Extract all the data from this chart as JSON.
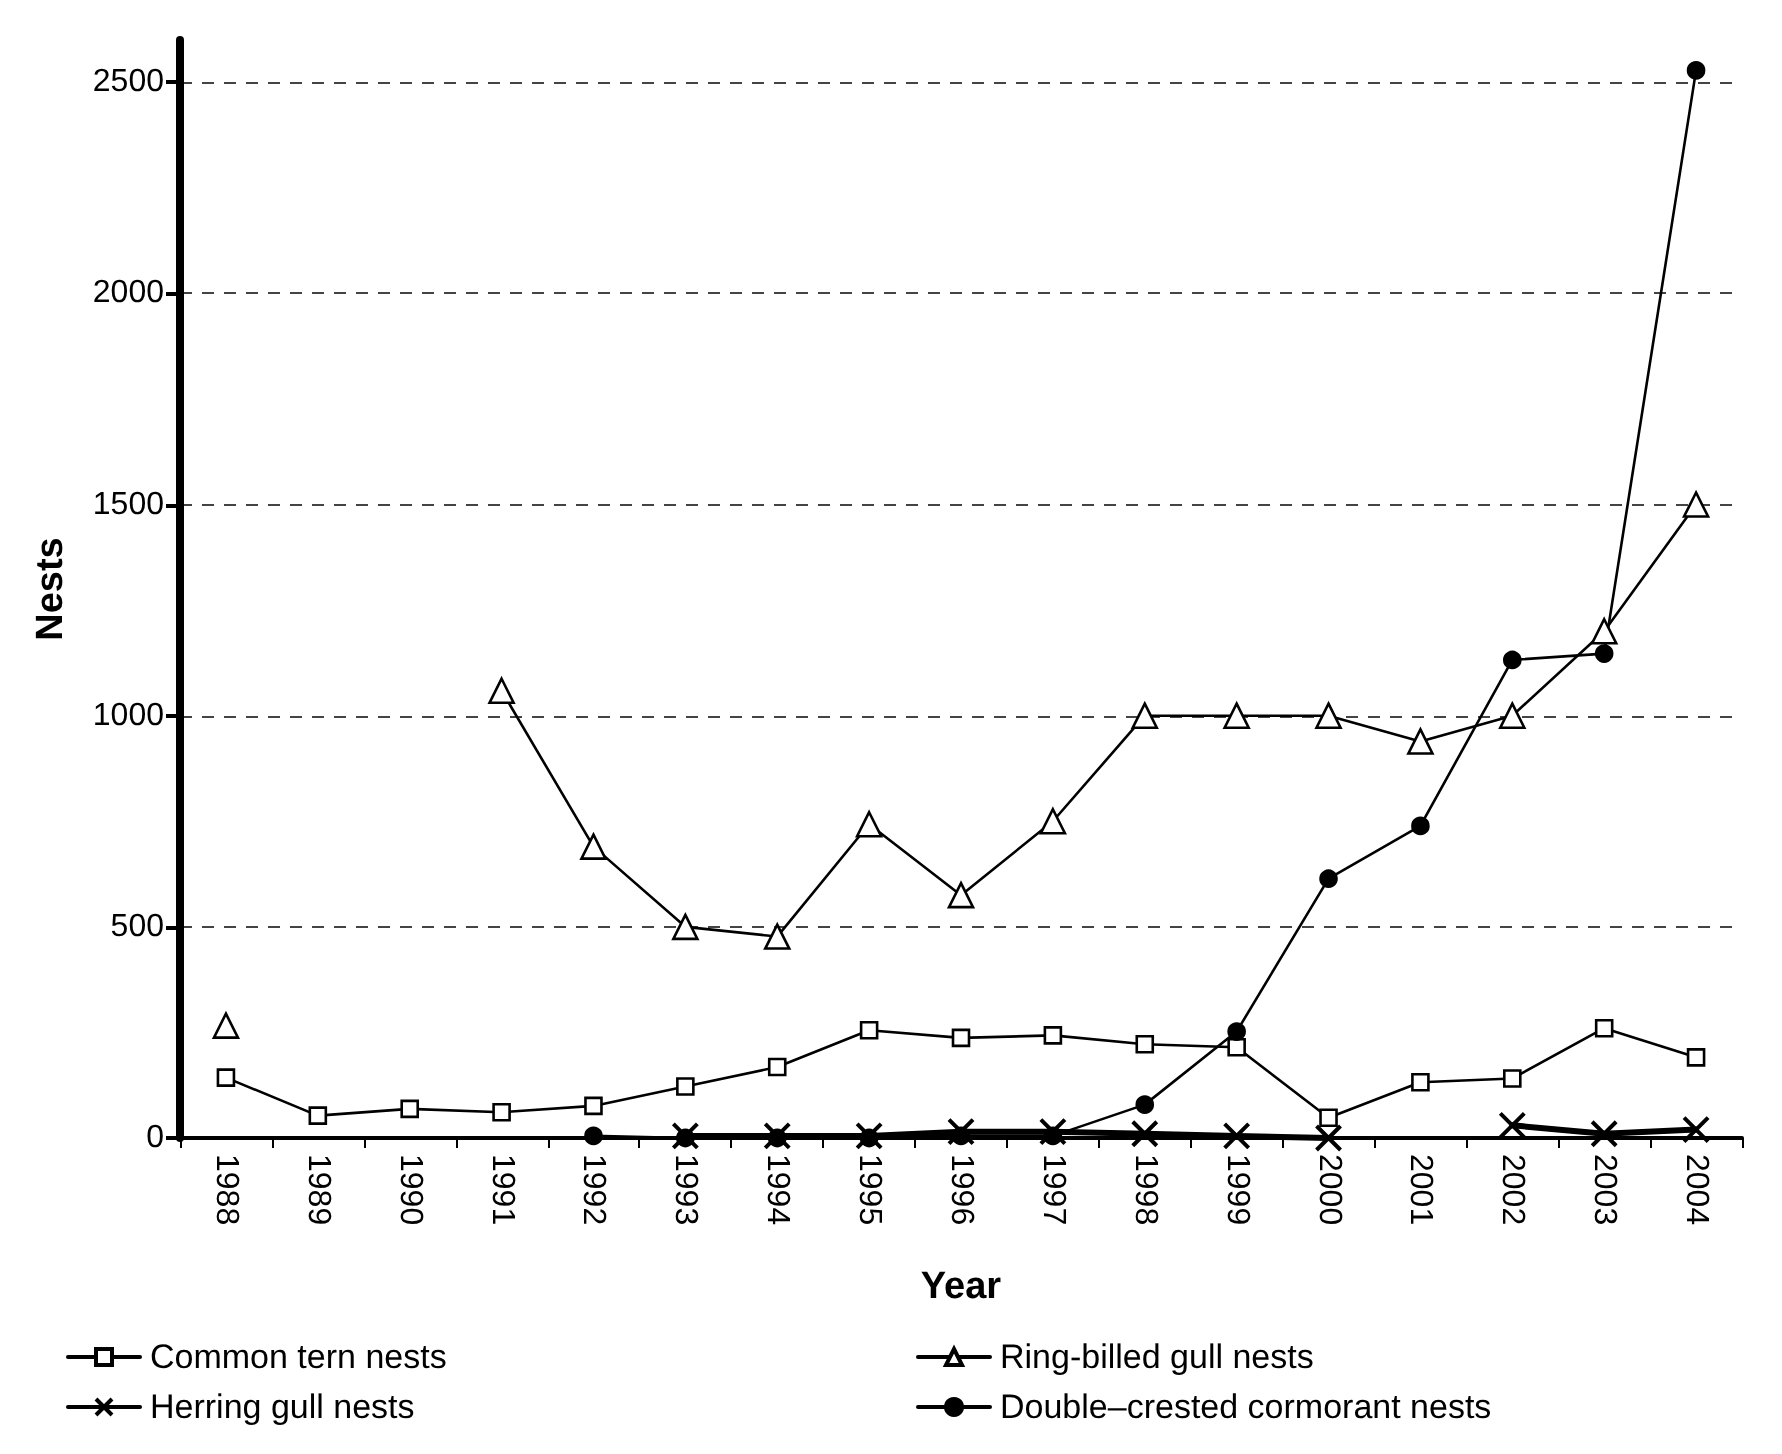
{
  "chart_data": {
    "type": "line",
    "xlabel": "Year",
    "ylabel": "Nests",
    "categories": [
      "1988",
      "1989",
      "1990",
      "1991",
      "1992",
      "1993",
      "1994",
      "1995",
      "1996",
      "1997",
      "1998",
      "1999",
      "2000",
      "2001",
      "2002",
      "2003",
      "2004"
    ],
    "ylim": [
      0,
      2600
    ],
    "yticks": [
      0,
      500,
      1000,
      1500,
      2000,
      2500
    ],
    "grid": "y",
    "legend": "bottom",
    "series": [
      {
        "name": "Common tern nests",
        "color": "#000000",
        "marker": "square",
        "values": [
          143,
          53,
          69,
          61,
          76,
          122,
          168,
          255,
          237,
          243,
          222,
          215,
          48,
          132,
          141,
          260,
          191
        ]
      },
      {
        "name": "Ring-billed gull nests",
        "color": "#000000",
        "marker": "triangle",
        "values": [
          266,
          null,
          null,
          1059,
          690,
          500,
          477,
          743,
          575,
          750,
          1000,
          1000,
          1000,
          939,
          1000,
          1200,
          1500
        ]
      },
      {
        "name": "Herring gull nests",
        "color": "#000000",
        "marker": "cross",
        "values": [
          null,
          null,
          null,
          null,
          null,
          5,
          5,
          5,
          15,
          15,
          10,
          5,
          0,
          null,
          30,
          10,
          20
        ]
      },
      {
        "name": "Double–crested cormorant nests",
        "color": "#000000",
        "marker": "circle",
        "values": [
          null,
          null,
          null,
          null,
          5,
          0,
          0,
          0,
          5,
          5,
          79,
          252,
          614,
          739,
          1132,
          1147,
          2528
        ]
      }
    ]
  }
}
